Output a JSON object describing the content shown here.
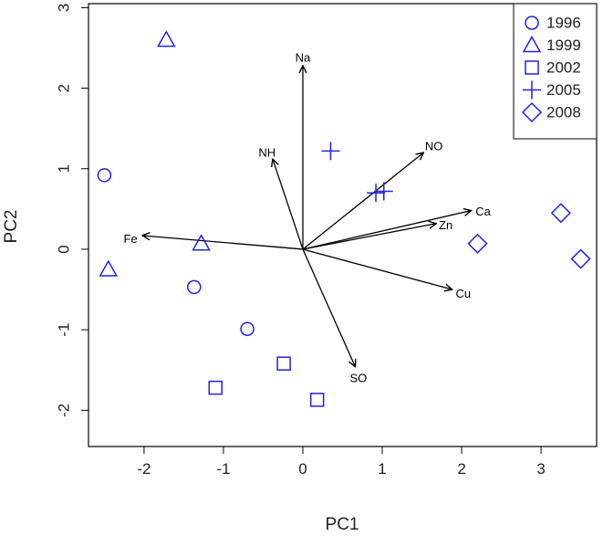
{
  "chart_data": {
    "type": "scatter",
    "xlabel": "PC1",
    "ylabel": "PC2",
    "xlim": [
      -2.7,
      3.7
    ],
    "ylim": [
      -2.45,
      3.05
    ],
    "x_ticks": [
      -2,
      -1,
      0,
      1,
      2,
      3
    ],
    "y_ticks": [
      -2,
      -1,
      0,
      1,
      2,
      3
    ],
    "grid": false,
    "legend_position": "top-right",
    "point_color": "#2222dd",
    "arrow_color": "#000000",
    "series": [
      {
        "name": "1996",
        "marker": "circle",
        "points": [
          [
            -2.5,
            0.92
          ],
          [
            -1.37,
            -0.47
          ],
          [
            -0.7,
            -0.99
          ]
        ]
      },
      {
        "name": "1999",
        "marker": "triangle",
        "points": [
          [
            -1.72,
            2.6
          ],
          [
            -1.28,
            0.07
          ],
          [
            -2.45,
            -0.25
          ]
        ]
      },
      {
        "name": "2002",
        "marker": "square",
        "points": [
          [
            -0.24,
            -1.42
          ],
          [
            -1.1,
            -1.72
          ],
          [
            0.18,
            -1.87
          ]
        ]
      },
      {
        "name": "2005",
        "marker": "plus",
        "points": [
          [
            0.35,
            1.22
          ],
          [
            0.92,
            0.7
          ],
          [
            1.02,
            0.72
          ]
        ]
      },
      {
        "name": "2008",
        "marker": "diamond",
        "points": [
          [
            2.2,
            0.07
          ],
          [
            3.25,
            0.45
          ],
          [
            3.5,
            -0.12
          ]
        ]
      }
    ],
    "loadings": [
      {
        "label": "Na",
        "x": 0.0,
        "y": 2.28,
        "lx": 0.0,
        "ly": 2.38
      },
      {
        "label": "NH",
        "x": -0.38,
        "y": 1.12,
        "lx": -0.45,
        "ly": 1.2
      },
      {
        "label": "NO",
        "x": 1.52,
        "y": 1.2,
        "lx": 1.65,
        "ly": 1.28
      },
      {
        "label": "Ca",
        "x": 2.12,
        "y": 0.48,
        "lx": 2.27,
        "ly": 0.47
      },
      {
        "label": "Zn",
        "x": 1.68,
        "y": 0.32,
        "lx": 1.8,
        "ly": 0.3
      },
      {
        "label": "Fe",
        "x": -2.02,
        "y": 0.17,
        "lx": -2.17,
        "ly": 0.13
      },
      {
        "label": "Cu",
        "x": 1.88,
        "y": -0.5,
        "lx": 2.02,
        "ly": -0.55
      },
      {
        "label": "SO",
        "x": 0.66,
        "y": -1.46,
        "lx": 0.7,
        "ly": -1.6
      }
    ]
  }
}
